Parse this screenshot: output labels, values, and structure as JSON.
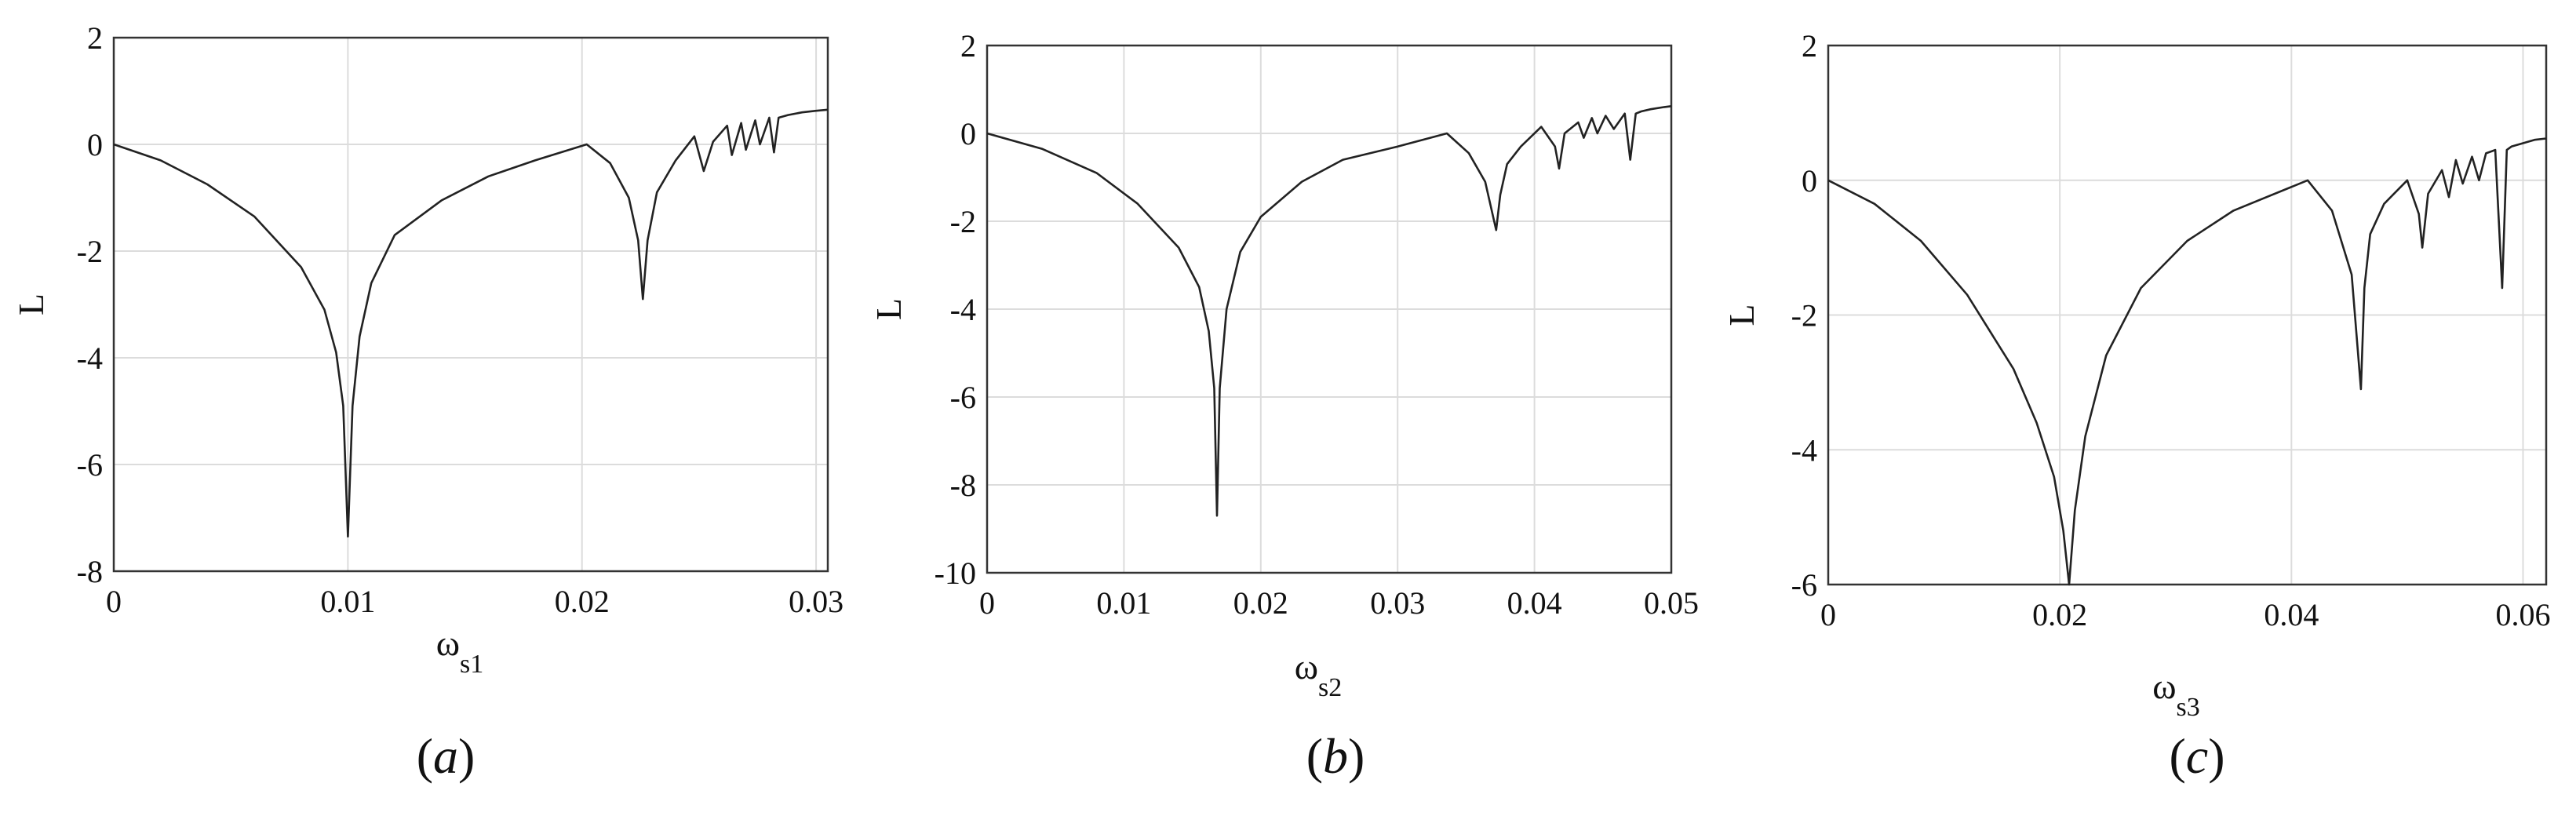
{
  "chart_data": [
    {
      "type": "line",
      "caption": {
        "open": "(",
        "letter": "a",
        "close": ")"
      },
      "xlabel": {
        "main": "ω",
        "sub": "s1"
      },
      "ylabel": "L",
      "xlim": [
        0,
        0.0305
      ],
      "ylim": [
        -8,
        2
      ],
      "xticks": [
        0,
        0.01,
        0.02,
        0.03
      ],
      "xtick_labels": [
        "0",
        "0.01",
        "0.02",
        "0.03"
      ],
      "yticks": [
        -8,
        -6,
        -4,
        -2,
        0,
        2
      ],
      "ytick_labels": [
        "-8",
        "-6",
        "-4",
        "-2",
        "0",
        "2"
      ],
      "grid": true,
      "series": [
        {
          "x": [
            0,
            0.002,
            0.004,
            0.006,
            0.008,
            0.009,
            0.0095,
            0.0098,
            0.01,
            0.0102,
            0.0105,
            0.011,
            0.012,
            0.014,
            0.016,
            0.018,
            0.0202,
            0.0212,
            0.022,
            0.0224,
            0.0226,
            0.0228,
            0.0232,
            0.024,
            0.0248,
            0.0252,
            0.0256,
            0.0262,
            0.0264,
            0.0268,
            0.027,
            0.0274,
            0.0276,
            0.028,
            0.0282,
            0.0284,
            0.0288,
            0.0294,
            0.03,
            0.0305
          ],
          "y": [
            0,
            -0.3,
            -0.75,
            -1.35,
            -2.3,
            -3.1,
            -3.9,
            -4.9,
            -7.35,
            -4.9,
            -3.6,
            -2.6,
            -1.7,
            -1.05,
            -0.6,
            -0.3,
            0,
            -0.35,
            -1.0,
            -1.8,
            -2.9,
            -1.8,
            -0.9,
            -0.3,
            0.15,
            -0.5,
            0.05,
            0.35,
            -0.2,
            0.4,
            -0.1,
            0.45,
            0.0,
            0.5,
            -0.15,
            0.5,
            0.55,
            0.6,
            0.63,
            0.65
          ]
        }
      ]
    },
    {
      "type": "line",
      "caption": {
        "open": "(",
        "letter": "b",
        "close": ")"
      },
      "xlabel": {
        "main": "ω",
        "sub": "s2"
      },
      "ylabel": "L",
      "xlim": [
        0,
        0.05
      ],
      "ylim": [
        -10,
        2
      ],
      "xticks": [
        0,
        0.01,
        0.02,
        0.03,
        0.04,
        0.05
      ],
      "xtick_labels": [
        "0",
        "0.01",
        "0.02",
        "0.03",
        "0.04",
        "0.05"
      ],
      "yticks": [
        -10,
        -8,
        -6,
        -4,
        -2,
        0,
        2
      ],
      "ytick_labels": [
        "-10",
        "-8",
        "-6",
        "-4",
        "-2",
        "0",
        "2"
      ],
      "grid": true,
      "series": [
        {
          "x": [
            0,
            0.004,
            0.008,
            0.011,
            0.014,
            0.0155,
            0.0162,
            0.0166,
            0.0168,
            0.017,
            0.0175,
            0.0185,
            0.02,
            0.023,
            0.026,
            0.03,
            0.0336,
            0.0352,
            0.0364,
            0.0372,
            0.0375,
            0.038,
            0.039,
            0.0405,
            0.0415,
            0.0418,
            0.0422,
            0.0432,
            0.0436,
            0.0442,
            0.0446,
            0.0452,
            0.0458,
            0.0466,
            0.047,
            0.0474,
            0.0478,
            0.0485,
            0.0495,
            0.05
          ],
          "y": [
            0,
            -0.35,
            -0.9,
            -1.6,
            -2.6,
            -3.5,
            -4.5,
            -5.8,
            -8.7,
            -5.8,
            -4.0,
            -2.7,
            -1.9,
            -1.1,
            -0.6,
            -0.3,
            0,
            -0.45,
            -1.1,
            -2.2,
            -1.4,
            -0.7,
            -0.3,
            0.15,
            -0.3,
            -0.8,
            0.0,
            0.25,
            -0.1,
            0.35,
            0.0,
            0.4,
            0.1,
            0.45,
            -0.6,
            0.45,
            0.5,
            0.55,
            0.6,
            0.62
          ]
        }
      ]
    },
    {
      "type": "line",
      "caption": {
        "open": "(",
        "letter": "c",
        "close": ")"
      },
      "xlabel": {
        "main": "ω",
        "sub": "s3"
      },
      "ylabel": "L",
      "xlim": [
        0,
        0.062
      ],
      "ylim": [
        -6,
        2
      ],
      "xticks": [
        0,
        0.02,
        0.04,
        0.06
      ],
      "xtick_labels": [
        "0",
        "0.02",
        "0.04",
        "0.06"
      ],
      "yticks": [
        -6,
        -4,
        -2,
        0,
        2
      ],
      "ytick_labels": [
        "-6",
        "-4",
        "-2",
        "0",
        "2"
      ],
      "grid": true,
      "series": [
        {
          "x": [
            0,
            0.004,
            0.008,
            0.012,
            0.016,
            0.018,
            0.0195,
            0.0203,
            0.0208,
            0.0213,
            0.0222,
            0.024,
            0.027,
            0.031,
            0.035,
            0.0414,
            0.0435,
            0.0452,
            0.046,
            0.0463,
            0.0468,
            0.048,
            0.05,
            0.051,
            0.0513,
            0.0518,
            0.053,
            0.0536,
            0.0542,
            0.0548,
            0.0556,
            0.0562,
            0.0568,
            0.0576,
            0.0582,
            0.0586,
            0.059,
            0.06,
            0.061,
            0.062
          ],
          "y": [
            0,
            -0.35,
            -0.9,
            -1.7,
            -2.8,
            -3.6,
            -4.4,
            -5.2,
            -6.0,
            -4.9,
            -3.8,
            -2.6,
            -1.6,
            -0.9,
            -0.45,
            0,
            -0.45,
            -1.4,
            -3.1,
            -1.6,
            -0.8,
            -0.35,
            0.0,
            -0.5,
            -1.0,
            -0.2,
            0.15,
            -0.25,
            0.3,
            -0.05,
            0.35,
            0.0,
            0.4,
            0.45,
            -1.6,
            0.45,
            0.5,
            0.55,
            0.6,
            0.62
          ]
        }
      ]
    }
  ]
}
